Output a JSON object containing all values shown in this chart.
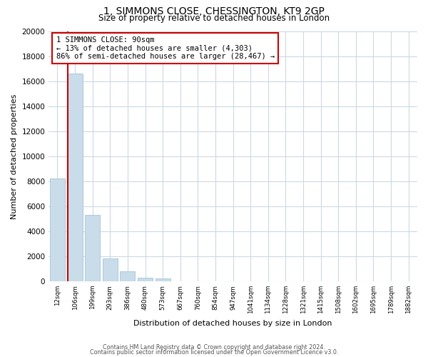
{
  "title": "1, SIMMONS CLOSE, CHESSINGTON, KT9 2GP",
  "subtitle": "Size of property relative to detached houses in London",
  "xlabel": "Distribution of detached houses by size in London",
  "ylabel": "Number of detached properties",
  "bar_labels": [
    "12sqm",
    "106sqm",
    "199sqm",
    "293sqm",
    "386sqm",
    "480sqm",
    "573sqm",
    "667sqm",
    "760sqm",
    "854sqm",
    "947sqm",
    "1041sqm",
    "1134sqm",
    "1228sqm",
    "1321sqm",
    "1415sqm",
    "1508sqm",
    "1602sqm",
    "1695sqm",
    "1789sqm",
    "1882sqm"
  ],
  "bar_heights": [
    8200,
    16600,
    5300,
    1850,
    800,
    300,
    200,
    0,
    0,
    0,
    0,
    0,
    0,
    0,
    0,
    0,
    0,
    0,
    0,
    0,
    0
  ],
  "bar_color": "#c8dcea",
  "bar_edge_color": "#aec8dc",
  "annotation_title": "1 SIMMONS CLOSE: 90sqm",
  "annotation_line1": "← 13% of detached houses are smaller (4,303)",
  "annotation_line2": "86% of semi-detached houses are larger (28,467) →",
  "annotation_box_edge": "#cc0000",
  "ylim": [
    0,
    20000
  ],
  "yticks": [
    0,
    2000,
    4000,
    6000,
    8000,
    10000,
    12000,
    14000,
    16000,
    18000,
    20000
  ],
  "property_vline_color": "#cc0000",
  "footer_line1": "Contains HM Land Registry data © Crown copyright and database right 2024.",
  "footer_line2": "Contains public sector information licensed under the Open Government Licence v3.0.",
  "bg_color": "#ffffff",
  "grid_color": "#ccd9e4"
}
